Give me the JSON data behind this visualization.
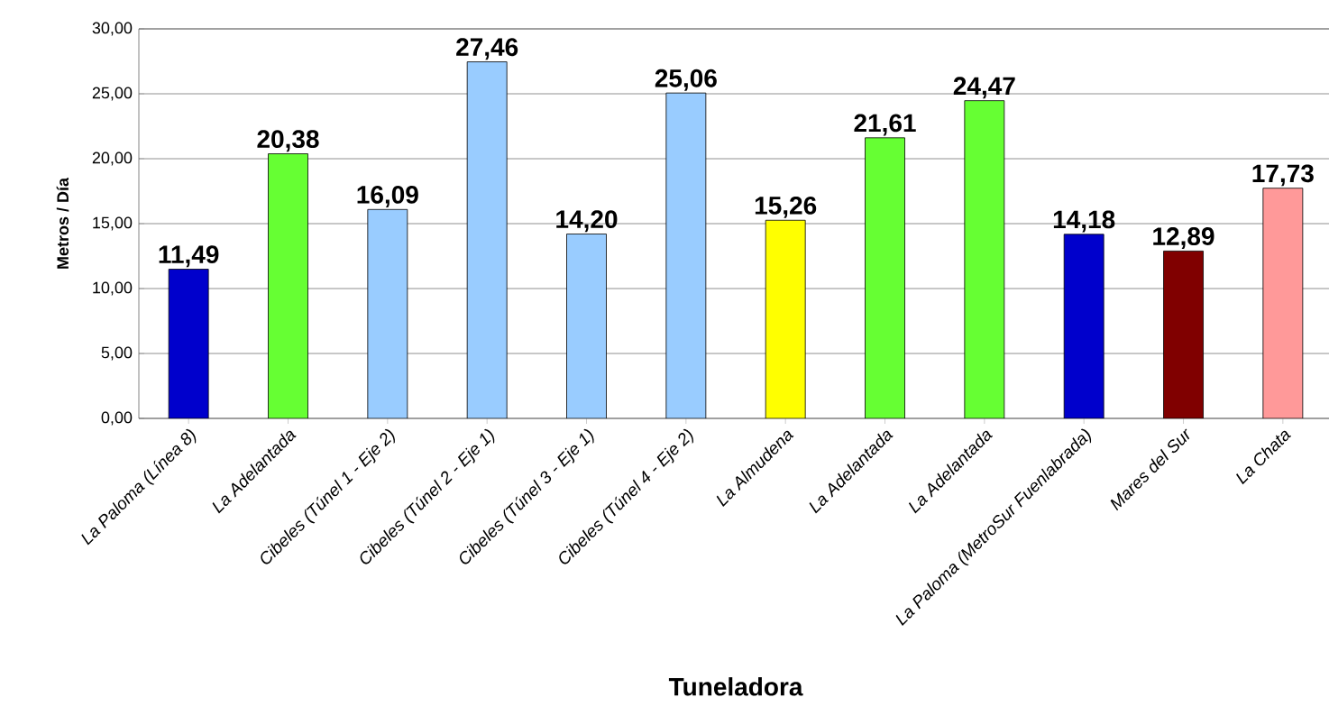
{
  "chart_data": {
    "type": "bar",
    "xlabel": "Tuneladora",
    "ylabel": "Metros / Día",
    "categories": [
      "La Paloma (Línea 8)",
      "La Adelantada",
      "Cibeles (Túnel 1 - Eje 2)",
      "Cibeles (Túnel 2 - Eje 1)",
      "Cibeles (Túnel 3 - Eje 1)",
      "Cibeles (Túnel 4 - Eje 2)",
      "La Almudena",
      "La Adelantada",
      "La Adelantada",
      "La Paloma (MetroSur Fuenlabrada)",
      "Mares del Sur",
      "La Chata"
    ],
    "values": [
      11.49,
      20.38,
      16.09,
      27.46,
      14.2,
      25.06,
      15.26,
      21.61,
      24.47,
      14.18,
      12.89,
      17.73
    ],
    "value_labels": [
      "11,49",
      "20,38",
      "16,09",
      "27,46",
      "14,20",
      "25,06",
      "15,26",
      "21,61",
      "24,47",
      "14,18",
      "12,89",
      "17,73"
    ],
    "colors": [
      "#0000cc",
      "#66ff33",
      "#99ccff",
      "#99ccff",
      "#99ccff",
      "#99ccff",
      "#ffff00",
      "#66ff33",
      "#66ff33",
      "#0000cc",
      "#800000",
      "#ff9999"
    ],
    "ylim": [
      0,
      30
    ],
    "yticks": [
      {
        "value": 0,
        "label": "0,00"
      },
      {
        "value": 5,
        "label": "5,00"
      },
      {
        "value": 10,
        "label": "10,00"
      },
      {
        "value": 15,
        "label": "15,00"
      },
      {
        "value": 20,
        "label": "20,00"
      },
      {
        "value": 25,
        "label": "25,00"
      },
      {
        "value": 30,
        "label": "30,00"
      }
    ],
    "grid": "y"
  }
}
